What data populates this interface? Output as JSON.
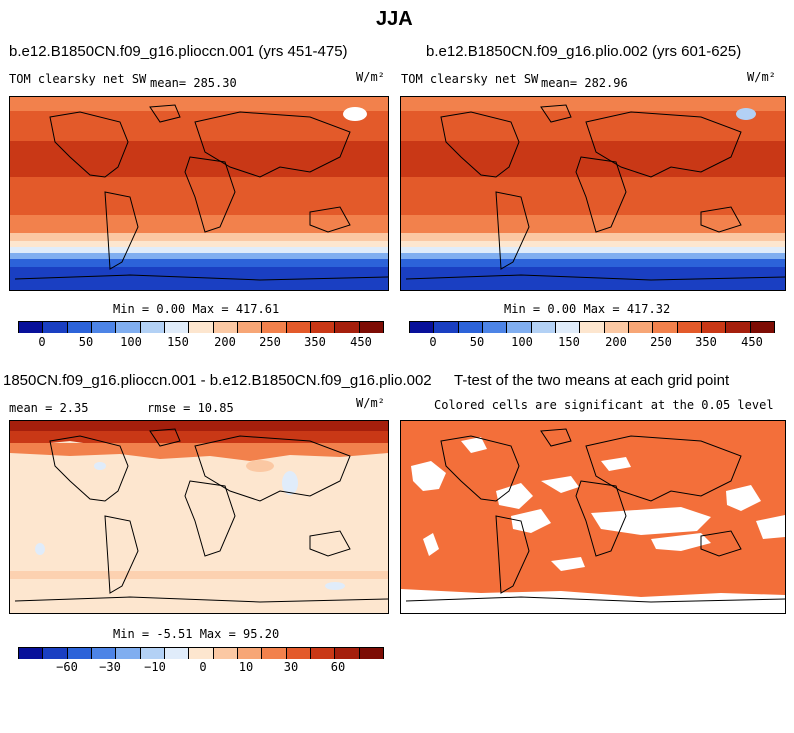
{
  "figure": {
    "title": "JJA"
  },
  "panels": {
    "p1": {
      "title": "b.e12.B1850CN.f09_g16.plioccn.001 (yrs 451-475)",
      "left_label": "TOM clearsky net SW",
      "mean_label": "mean= 285.30",
      "units": "W/m²",
      "minmax": "Min =   0.00 Max = 417.61"
    },
    "p2": {
      "title": "b.e12.B1850CN.f09_g16.plio.002 (yrs 601-625)",
      "left_label": "TOM clearsky net SW",
      "mean_label": "mean= 282.96",
      "units": "W/m²",
      "minmax": "Min =   0.00 Max = 417.32"
    },
    "p3": {
      "title": "1850CN.f09_g16.plioccn.001 - b.e12.B1850CN.f09_g16.plio.002",
      "mean_label": "mean =   2.35",
      "rmse_label": "rmse =  10.85",
      "units": "W/m²",
      "minmax": "Min =  -5.51 Max =  95.20"
    },
    "p4": {
      "title": "T-test of the two means at each grid point",
      "subtitle": "Colored cells are significant at the 0.05 level"
    }
  },
  "colorbars": {
    "abs": {
      "colors": [
        "#08109a",
        "#1a3fc2",
        "#2c63d9",
        "#4d84e6",
        "#80aef0",
        "#b3d1f5",
        "#e0ecfa",
        "#fde6cf",
        "#fbc8a3",
        "#f7a676",
        "#f2814c",
        "#e35a2a",
        "#c93816",
        "#a51f0c",
        "#7d0c04"
      ],
      "labels": [
        "0",
        "50",
        "100",
        "150",
        "200",
        "250",
        "350",
        "450"
      ]
    },
    "diff": {
      "colors": [
        "#08109a",
        "#1a3fc2",
        "#2c63d9",
        "#4d84e6",
        "#80aef0",
        "#b3d1f5",
        "#e0ecfa",
        "#fde6cf",
        "#fbc8a3",
        "#f7a676",
        "#f2814c",
        "#e35a2a",
        "#c93816",
        "#a51f0c",
        "#7d0c04"
      ],
      "labels": [
        "−60",
        "−30",
        "−10",
        "0",
        "10",
        "30",
        "60"
      ]
    }
  },
  "colors": {
    "significant": "#f36f3a",
    "diff_base": "#fde6cf",
    "diff_high": "#a51f0c"
  }
}
